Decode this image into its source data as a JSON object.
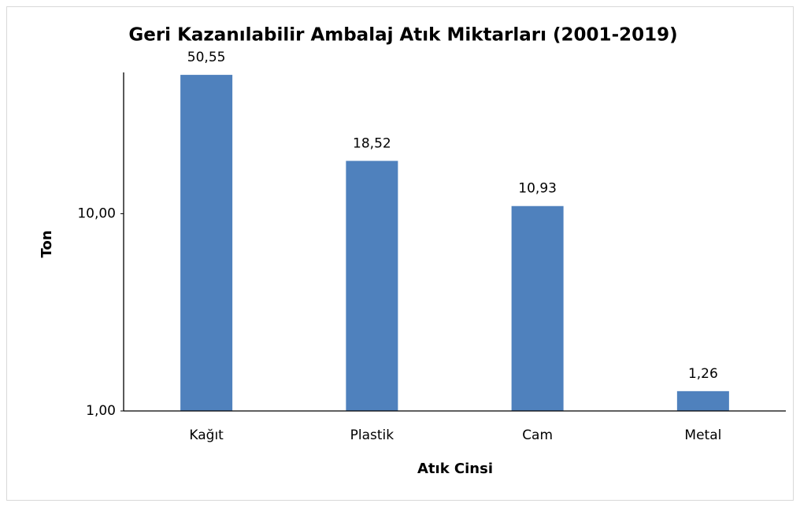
{
  "chart_data": {
    "type": "bar",
    "title": "Geri Kazanılabilir Ambalaj Atık Miktarları (2001-2019)",
    "x_label": "Atık Cinsi",
    "y_label": "Ton",
    "categories": [
      "Kağıt",
      "Plastik",
      "Cam",
      "Metal"
    ],
    "values": [
      50.55,
      18.52,
      10.93,
      1.26
    ],
    "value_labels": [
      "50,55",
      "18,52",
      "10,93",
      "1,26"
    ],
    "color": "#4f81bd",
    "log_scale": true,
    "grid": false,
    "ylim": [
      1,
      52
    ],
    "yticks": [
      {
        "value": 1,
        "label": "1,00"
      },
      {
        "value": 10,
        "label": "10,00"
      }
    ]
  }
}
